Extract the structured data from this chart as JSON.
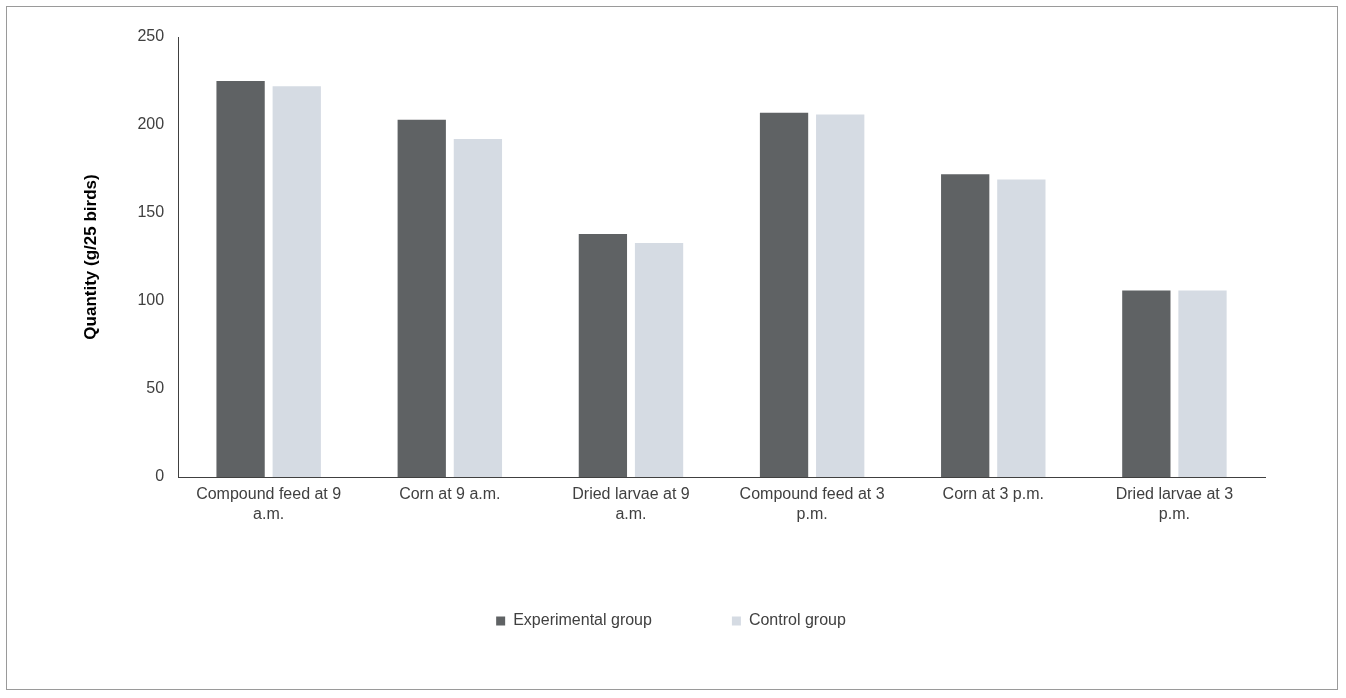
{
  "chart_data": {
    "type": "bar",
    "ylabel": "Quantity (g/25 birds)",
    "categories": [
      "Compound feed at 9 a.m.",
      "Corn at 9 a.m.",
      "Dried larvae at 9 a.m.",
      "Compound feed at 3 p.m.",
      "Corn at 3 p.m.",
      "Dried larvae at 3 p.m."
    ],
    "series": [
      {
        "name": "Experimental group",
        "color": "#5f6264",
        "values": [
          225,
          203,
          138,
          207,
          172,
          106
        ]
      },
      {
        "name": "Control group",
        "color": "#d5dbe3",
        "values": [
          222,
          192,
          133,
          206,
          169,
          106
        ]
      }
    ],
    "ylim": [
      0,
      250
    ],
    "yticks": [
      0,
      50,
      100,
      150,
      200,
      250
    ],
    "grid": false,
    "legend": "bottom"
  }
}
